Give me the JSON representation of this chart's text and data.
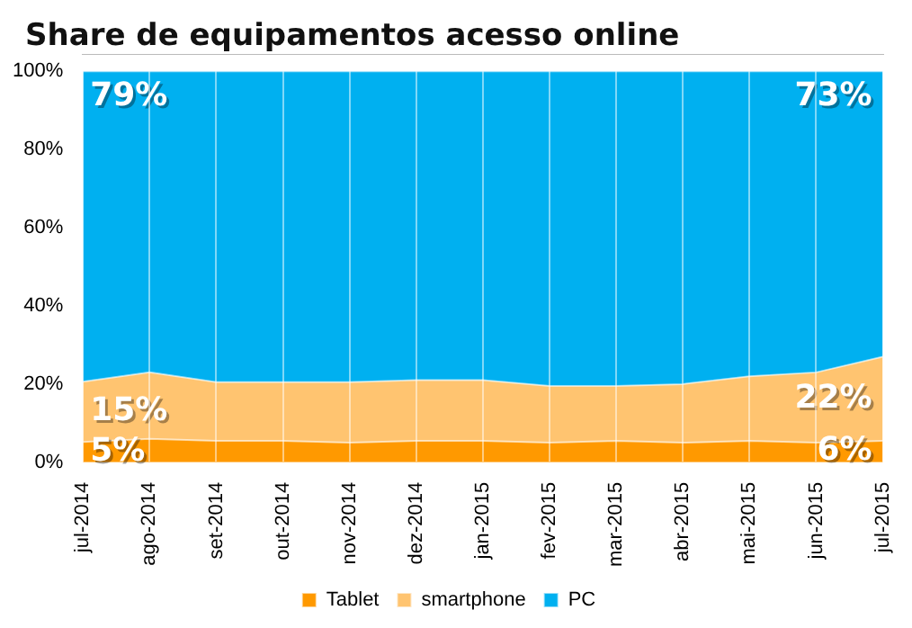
{
  "chart_data": {
    "type": "area",
    "title": "Share de equipamentos acesso online",
    "stacked": true,
    "categories": [
      "jul-2014",
      "ago-2014",
      "set-2014",
      "out-2014",
      "nov-2014",
      "dez-2014",
      "jan-2015",
      "fev-2015",
      "mar-2015",
      "abr-2015",
      "mai-2015",
      "jun-2015",
      "jul-2015"
    ],
    "series": [
      {
        "name": "Tablet",
        "color": "#ff9900",
        "values": [
          5.2,
          6,
          5.5,
          5.5,
          5,
          5.5,
          5.5,
          5,
          5.5,
          5,
          5.5,
          5,
          5.5
        ],
        "value_labels": [
          "5%",
          null,
          null,
          null,
          null,
          null,
          null,
          null,
          null,
          null,
          null,
          null,
          "6%"
        ]
      },
      {
        "name": "smartphone",
        "color": "#ffc470",
        "values": [
          15.4,
          17,
          15,
          15,
          15.5,
          15.5,
          15.5,
          14.5,
          14,
          15,
          16.5,
          18,
          21.5
        ],
        "value_labels": [
          "15%",
          null,
          null,
          null,
          null,
          null,
          null,
          null,
          null,
          null,
          null,
          null,
          "22%"
        ]
      },
      {
        "name": "PC",
        "color": "#00b0f0",
        "values": [
          79.4,
          77,
          79.5,
          79.5,
          79.5,
          79,
          79,
          80.5,
          80.5,
          80,
          78,
          77,
          73
        ],
        "value_labels": [
          "79%",
          null,
          null,
          null,
          null,
          null,
          null,
          null,
          null,
          null,
          null,
          null,
          "73%"
        ]
      }
    ],
    "ylim": [
      0,
      100
    ],
    "yticks": [
      {
        "value": 0,
        "label": "0%"
      },
      {
        "value": 20,
        "label": "20%"
      },
      {
        "value": 40,
        "label": "40%"
      },
      {
        "value": 60,
        "label": "60%"
      },
      {
        "value": 80,
        "label": "80%"
      },
      {
        "value": 100,
        "label": "100%"
      }
    ],
    "grid": "x",
    "legend": "bottom"
  }
}
